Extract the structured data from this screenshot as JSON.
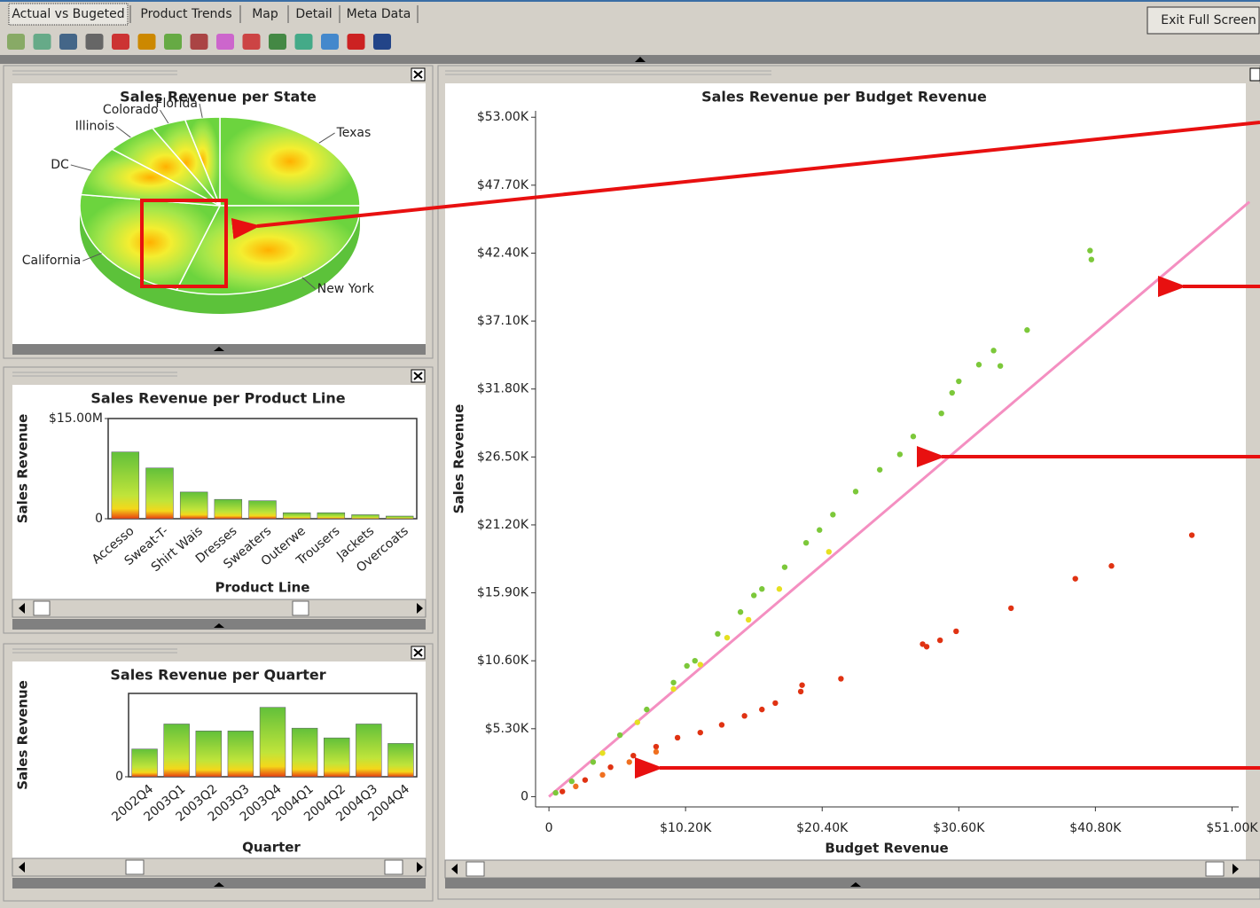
{
  "tabs": [
    "Actual vs Bugeted",
    "Product Trends",
    "Map",
    "Detail",
    "Meta Data"
  ],
  "exit_button": "Exit Full Screen",
  "chart_data": [
    {
      "type": "pie",
      "title": "Sales Revenue per State",
      "categories": [
        "Texas",
        "New York",
        "California",
        "DC",
        "Illinois",
        "Colorado",
        "Florida"
      ],
      "values": [
        25,
        30,
        22,
        9,
        6,
        4,
        4
      ]
    },
    {
      "type": "bar",
      "title": "Sales Revenue per Product Line",
      "xlabel": "Product Line",
      "ylabel": "Sales Revenue",
      "categories": [
        "Accesso",
        "Sweat-T-",
        "Shirt Wais",
        "Dresses",
        "Sweaters",
        "Outerwe",
        "Trousers",
        "Jackets",
        "Overcoats"
      ],
      "values": [
        10000000,
        7600000,
        4000000,
        2900000,
        2700000,
        900000,
        900000,
        600000,
        400000
      ],
      "ylim": [
        0,
        15000000
      ],
      "yticks": [
        0,
        {
          "value": 15000000,
          "label": "$15.00M"
        }
      ]
    },
    {
      "type": "bar",
      "title": "Sales Revenue per Quarter",
      "xlabel": "Quarter",
      "ylabel": "Sales Revenue",
      "categories": [
        "2002Q4",
        "2003Q1",
        "2003Q2",
        "2003Q3",
        "2003Q4",
        "2004Q1",
        "2004Q2",
        "2004Q3",
        "2004Q4"
      ],
      "values": [
        2000000,
        3800000,
        3300000,
        3300000,
        5000000,
        3500000,
        2800000,
        3800000,
        2400000
      ],
      "ylim": [
        0,
        6000000
      ],
      "yticks": [
        0
      ]
    },
    {
      "type": "scatter",
      "title": "Sales Revenue per Budget Revenue",
      "xlabel": "Budget Revenue",
      "ylabel": "Sales Revenue",
      "xlim": [
        -1000,
        51500
      ],
      "ylim": [
        -800,
        53500
      ],
      "xticks": [
        0,
        {
          "value": 10200,
          "label": "$10.20K"
        },
        {
          "value": 20400,
          "label": "$20.40K"
        },
        {
          "value": 30600,
          "label": "$30.60K"
        },
        {
          "value": 40800,
          "label": "$40.80K"
        },
        {
          "value": 51000,
          "label": "$51.00K"
        }
      ],
      "yticks": [
        0,
        {
          "value": 5300,
          "label": "$5.30K"
        },
        {
          "value": 10600,
          "label": "$10.60K"
        },
        {
          "value": 15900,
          "label": "$15.90K"
        },
        {
          "value": 21200,
          "label": "$21.20K"
        },
        {
          "value": 26500,
          "label": "$26.50K"
        },
        {
          "value": 31800,
          "label": "$31.80K"
        },
        {
          "value": 37100,
          "label": "$37.10K"
        },
        {
          "value": 42400,
          "label": "$42.40K"
        },
        {
          "value": 47700,
          "label": "$47.70K"
        },
        {
          "value": 53000,
          "label": "$53.00K"
        }
      ],
      "series": [
        {
          "color": "#7cc83a",
          "x": [
            40400,
            40500,
            35700,
            33200,
            33700,
            32100,
            30600,
            30100,
            29300,
            27200,
            26200,
            24700,
            22900,
            21200,
            19200,
            17600,
            15900,
            14300,
            12600,
            10900,
            9300,
            7300,
            5300,
            3300,
            1700,
            500,
            20200,
            15300,
            10300
          ],
          "y": [
            42600,
            41900,
            36400,
            34800,
            33600,
            33700,
            32400,
            31500,
            29900,
            28100,
            26700,
            25500,
            23800,
            22000,
            19800,
            17900,
            16200,
            14400,
            12700,
            10600,
            8900,
            6800,
            4800,
            2700,
            1200,
            300,
            20800,
            15700,
            10200
          ]
        },
        {
          "color": "#e6e020",
          "x": [
            20900,
            17200,
            14900,
            13300,
            11300,
            9300,
            6600,
            4000
          ],
          "y": [
            19100,
            16200,
            13800,
            12400,
            10300,
            8400,
            5800,
            3400
          ]
        },
        {
          "color": "#e03212",
          "x": [
            48000,
            42000,
            39300,
            34500,
            30400,
            29200,
            28200,
            27900,
            21800,
            18900,
            18800,
            16900,
            15900,
            14600,
            12900,
            11300,
            9600,
            8000,
            6300,
            4600,
            2700,
            1000
          ],
          "y": [
            20400,
            18000,
            17000,
            14700,
            12900,
            12200,
            11700,
            11900,
            9200,
            8700,
            8200,
            7300,
            6800,
            6300,
            5600,
            5000,
            4600,
            3900,
            3200,
            2300,
            1300,
            400
          ]
        },
        {
          "color": "#f07020",
          "x": [
            8000,
            6000,
            4000,
            2000
          ],
          "y": [
            3500,
            2700,
            1700,
            800
          ]
        }
      ],
      "trend_line": {
        "color": "#f48fc1",
        "x": [
          0,
          52300
        ],
        "y": [
          0,
          46400
        ]
      }
    }
  ]
}
